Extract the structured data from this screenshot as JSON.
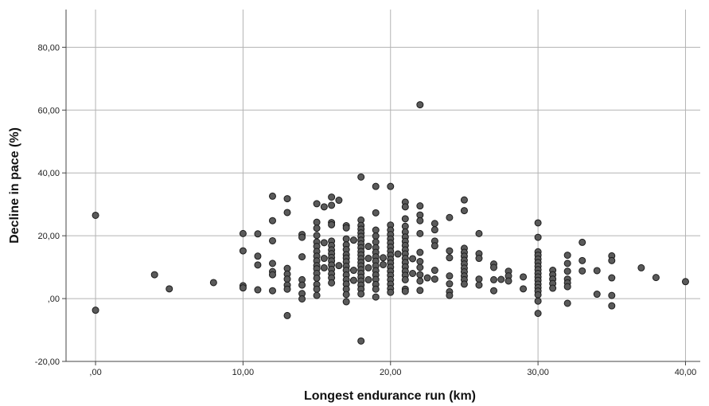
{
  "chart_data": {
    "type": "scatter",
    "xlabel": "Longest endurance run (km)",
    "ylabel": "Decline in pace (%)",
    "xlim": [
      -2,
      41
    ],
    "ylim": [
      -20,
      92
    ],
    "x_ticks": [
      0,
      10,
      20,
      30,
      40
    ],
    "y_ticks": [
      -20,
      0,
      20,
      40,
      60,
      80
    ],
    "x_tick_labels": [
      ",00",
      "10,00",
      "20,00",
      "30,00",
      "40,00"
    ],
    "y_tick_labels": [
      "-20,00",
      ",00",
      "20,00",
      "40,00",
      "60,00",
      "80,00"
    ],
    "grid": true,
    "point_color": "#5a5a5a",
    "series": [
      {
        "points": [
          [
            0,
            26.5
          ],
          [
            0,
            -3.7
          ],
          [
            4,
            7.6
          ],
          [
            5,
            3.1
          ],
          [
            8,
            5.1
          ],
          [
            10,
            20.7
          ],
          [
            10,
            15.2
          ],
          [
            10,
            4.1
          ],
          [
            10,
            3.4
          ],
          [
            11,
            20.6
          ],
          [
            11,
            13.5
          ],
          [
            11,
            10.7
          ],
          [
            11,
            2.8
          ],
          [
            12,
            32.6
          ],
          [
            12,
            24.8
          ],
          [
            12,
            18.4
          ],
          [
            12,
            11.2
          ],
          [
            12,
            8.6
          ],
          [
            12,
            7.6
          ],
          [
            12,
            2.5
          ],
          [
            13,
            31.8
          ],
          [
            13,
            27.4
          ],
          [
            13,
            9.6
          ],
          [
            13,
            7.8
          ],
          [
            13,
            6.2
          ],
          [
            13,
            4.3
          ],
          [
            13,
            3.0
          ],
          [
            13,
            -5.4
          ],
          [
            14,
            20.4
          ],
          [
            14,
            19.5
          ],
          [
            14,
            13.3
          ],
          [
            14,
            6.0
          ],
          [
            14,
            4.3
          ],
          [
            14,
            1.6
          ],
          [
            14,
            -0.1
          ],
          [
            15,
            30.2
          ],
          [
            15,
            24.3
          ],
          [
            15,
            22.4
          ],
          [
            15,
            20.1
          ],
          [
            15,
            18.0
          ],
          [
            15,
            16.6
          ],
          [
            15,
            15.0
          ],
          [
            15,
            13.5
          ],
          [
            15,
            12.0
          ],
          [
            15,
            10.5
          ],
          [
            15,
            9.5
          ],
          [
            15,
            8.0
          ],
          [
            15,
            6.5
          ],
          [
            15,
            4.5
          ],
          [
            15,
            3.0
          ],
          [
            15,
            1.0
          ],
          [
            15.5,
            29.2
          ],
          [
            15.5,
            17.8
          ],
          [
            15.5,
            12.8
          ],
          [
            15.5,
            9.8
          ],
          [
            16,
            32.3
          ],
          [
            16,
            29.7
          ],
          [
            16,
            24.2
          ],
          [
            16,
            23.5
          ],
          [
            16,
            18.3
          ],
          [
            16,
            16.9
          ],
          [
            16,
            15.5
          ],
          [
            16,
            14.3
          ],
          [
            16,
            13.1
          ],
          [
            16,
            12.0
          ],
          [
            16,
            10.7
          ],
          [
            16,
            9.3
          ],
          [
            16,
            7.9
          ],
          [
            16,
            6.6
          ],
          [
            16,
            5.0
          ],
          [
            16.5,
            31.3
          ],
          [
            16.5,
            10.5
          ],
          [
            17,
            23.2
          ],
          [
            17,
            22.5
          ],
          [
            17,
            19.0
          ],
          [
            17,
            17.1
          ],
          [
            17,
            15.6
          ],
          [
            17,
            14.0
          ],
          [
            17,
            12.9
          ],
          [
            17,
            11.7
          ],
          [
            17,
            10.3
          ],
          [
            17,
            9.0
          ],
          [
            17,
            7.5
          ],
          [
            17,
            6.0
          ],
          [
            17,
            4.6
          ],
          [
            17,
            3.0
          ],
          [
            17,
            1.3
          ],
          [
            17,
            -1.0
          ],
          [
            17.5,
            18.6
          ],
          [
            17.5,
            9.0
          ],
          [
            17.5,
            5.8
          ],
          [
            18,
            38.7
          ],
          [
            18,
            25.0
          ],
          [
            18,
            23.3
          ],
          [
            18,
            22.1
          ],
          [
            18,
            20.9
          ],
          [
            18,
            19.8
          ],
          [
            18,
            18.6
          ],
          [
            18,
            17.4
          ],
          [
            18,
            16.2
          ],
          [
            18,
            15.0
          ],
          [
            18,
            13.9
          ],
          [
            18,
            12.7
          ],
          [
            18,
            11.5
          ],
          [
            18,
            10.4
          ],
          [
            18,
            9.2
          ],
          [
            18,
            8.0
          ],
          [
            18,
            6.8
          ],
          [
            18,
            5.6
          ],
          [
            18,
            4.3
          ],
          [
            18,
            3.0
          ],
          [
            18,
            1.5
          ],
          [
            18,
            -13.5
          ],
          [
            18.5,
            16.6
          ],
          [
            18.5,
            12.8
          ],
          [
            18.5,
            9.8
          ],
          [
            18.5,
            6.0
          ],
          [
            19,
            35.7
          ],
          [
            19,
            27.3
          ],
          [
            19,
            21.8
          ],
          [
            19,
            19.9
          ],
          [
            19,
            18.0
          ],
          [
            19,
            16.2
          ],
          [
            19,
            14.7
          ],
          [
            19,
            13.3
          ],
          [
            19,
            11.9
          ],
          [
            19,
            10.4
          ],
          [
            19,
            8.9
          ],
          [
            19,
            7.5
          ],
          [
            19,
            6.1
          ],
          [
            19,
            4.5
          ],
          [
            19,
            3.0
          ],
          [
            19,
            0.5
          ],
          [
            19.5,
            13.0
          ],
          [
            19.5,
            10.8
          ],
          [
            20,
            35.7
          ],
          [
            20,
            23.4
          ],
          [
            20,
            21.8
          ],
          [
            20,
            20.4
          ],
          [
            20,
            19.0
          ],
          [
            20,
            17.7
          ],
          [
            20,
            16.4
          ],
          [
            20,
            15.1
          ],
          [
            20,
            13.8
          ],
          [
            20,
            12.5
          ],
          [
            20,
            11.3
          ],
          [
            20,
            10.0
          ],
          [
            20,
            8.7
          ],
          [
            20,
            7.4
          ],
          [
            20,
            6.0
          ],
          [
            20,
            4.6
          ],
          [
            20,
            3.2
          ],
          [
            20,
            2.0
          ],
          [
            20.5,
            14.2
          ],
          [
            21,
            30.7
          ],
          [
            21,
            29.2
          ],
          [
            21,
            25.4
          ],
          [
            21,
            23.0
          ],
          [
            21,
            21.2
          ],
          [
            21,
            19.6
          ],
          [
            21,
            18.2
          ],
          [
            21,
            16.9
          ],
          [
            21,
            15.5
          ],
          [
            21,
            14.2
          ],
          [
            21,
            12.8
          ],
          [
            21,
            11.5
          ],
          [
            21,
            10.1
          ],
          [
            21,
            8.7
          ],
          [
            21,
            7.4
          ],
          [
            21,
            6.0
          ],
          [
            21,
            3.0
          ],
          [
            21,
            2.3
          ],
          [
            21.5,
            12.7
          ],
          [
            21.5,
            8.0
          ],
          [
            22,
            61.7
          ],
          [
            22,
            29.5
          ],
          [
            22,
            26.6
          ],
          [
            22,
            24.8
          ],
          [
            22,
            20.7
          ],
          [
            22,
            14.7
          ],
          [
            22,
            11.8
          ],
          [
            22,
            9.9
          ],
          [
            22,
            7.6
          ],
          [
            22,
            5.6
          ],
          [
            22,
            2.6
          ],
          [
            22.5,
            6.6
          ],
          [
            23,
            23.9
          ],
          [
            23,
            21.9
          ],
          [
            23,
            18.3
          ],
          [
            23,
            16.8
          ],
          [
            23,
            9.0
          ],
          [
            23,
            6.2
          ],
          [
            24,
            25.8
          ],
          [
            24,
            15.2
          ],
          [
            24,
            13.0
          ],
          [
            24,
            7.2
          ],
          [
            24,
            4.7
          ],
          [
            24,
            2.2
          ],
          [
            24,
            1.0
          ],
          [
            25,
            31.4
          ],
          [
            25,
            28.0
          ],
          [
            25,
            16.0
          ],
          [
            25,
            14.7
          ],
          [
            25,
            13.5
          ],
          [
            25,
            12.2
          ],
          [
            25,
            11.0
          ],
          [
            25,
            9.7
          ],
          [
            25,
            8.5
          ],
          [
            25,
            7.2
          ],
          [
            25,
            6.0
          ],
          [
            25,
            4.6
          ],
          [
            26,
            20.7
          ],
          [
            26,
            14.3
          ],
          [
            26,
            12.8
          ],
          [
            26,
            6.2
          ],
          [
            26,
            4.3
          ],
          [
            27,
            11.0
          ],
          [
            27,
            9.9
          ],
          [
            27,
            6.0
          ],
          [
            27,
            2.5
          ],
          [
            27.5,
            6.1
          ],
          [
            28,
            8.7
          ],
          [
            28,
            7.2
          ],
          [
            28,
            5.6
          ],
          [
            29,
            6.9
          ],
          [
            29,
            3.1
          ],
          [
            30,
            24.1
          ],
          [
            30,
            19.5
          ],
          [
            30,
            14.9
          ],
          [
            30,
            13.8
          ],
          [
            30,
            12.6
          ],
          [
            30,
            11.5
          ],
          [
            30,
            10.3
          ],
          [
            30,
            9.2
          ],
          [
            30,
            8.0
          ],
          [
            30,
            6.9
          ],
          [
            30,
            5.8
          ],
          [
            30,
            4.6
          ],
          [
            30,
            3.5
          ],
          [
            30,
            2.4
          ],
          [
            30,
            1.2
          ],
          [
            30,
            -0.8
          ],
          [
            30,
            -4.7
          ],
          [
            31,
            9.0
          ],
          [
            31,
            7.6
          ],
          [
            31,
            6.2
          ],
          [
            31,
            4.8
          ],
          [
            31,
            3.3
          ],
          [
            32,
            13.8
          ],
          [
            32,
            11.2
          ],
          [
            32,
            8.7
          ],
          [
            32,
            6.2
          ],
          [
            32,
            5.0
          ],
          [
            32,
            3.8
          ],
          [
            32,
            -1.5
          ],
          [
            33,
            17.9
          ],
          [
            33,
            12.1
          ],
          [
            33,
            8.8
          ],
          [
            34,
            8.9
          ],
          [
            34,
            1.4
          ],
          [
            35,
            13.6
          ],
          [
            35,
            12.1
          ],
          [
            35,
            6.6
          ],
          [
            35,
            1.0
          ],
          [
            35,
            -2.3
          ],
          [
            37,
            9.8
          ],
          [
            38,
            6.7
          ],
          [
            40,
            5.4
          ]
        ]
      }
    ]
  }
}
